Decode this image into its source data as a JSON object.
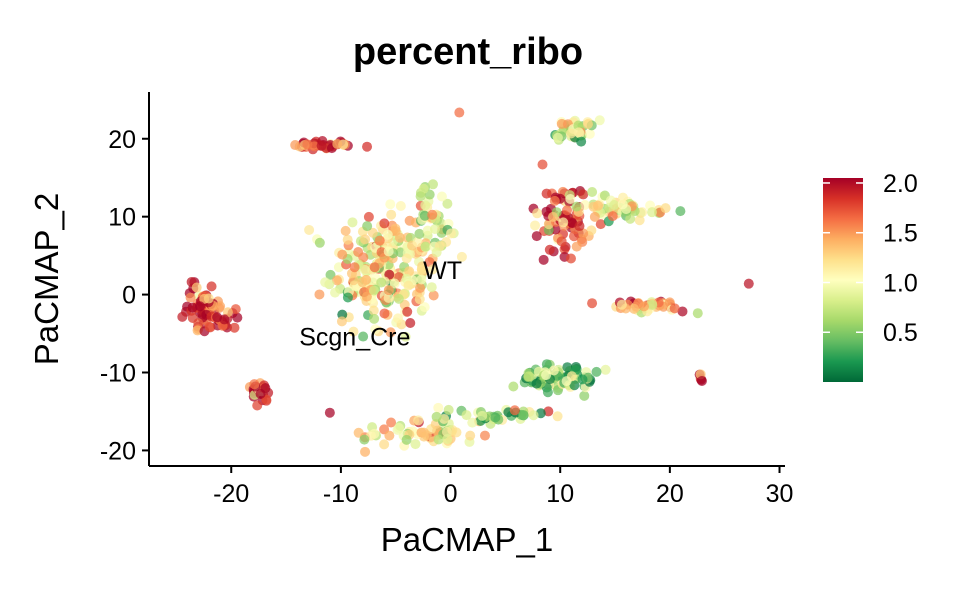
{
  "chart_data": {
    "type": "scatter",
    "title": "percent_ribo",
    "xlabel": "PaCMAP_1",
    "ylabel": "PaCMAP_2",
    "xlim": [
      -27.5,
      30.5
    ],
    "ylim": [
      -22,
      26
    ],
    "x_ticks": [
      -20,
      -10,
      0,
      10,
      20,
      30
    ],
    "y_ticks": [
      -20,
      -10,
      0,
      10,
      20
    ],
    "grid": false,
    "legend": {
      "position": "right",
      "type": "colorbar",
      "range": [
        0.0,
        2.05
      ],
      "ticks": [
        0.5,
        1.0,
        1.5,
        2.0
      ],
      "tick_labels": [
        "0.5",
        "1.0",
        "1.5",
        "2.0"
      ],
      "colors": [
        "#006837",
        "#1a9850",
        "#66bd63",
        "#a6d96a",
        "#d9ef8b",
        "#ffffbf",
        "#fee08b",
        "#fdae61",
        "#f46d43",
        "#d73027",
        "#a50026"
      ]
    },
    "annotations": [
      {
        "text": "WT",
        "x": -2.5,
        "y": 3.0
      },
      {
        "text": "Scgn_Cre",
        "x": -13.8,
        "y": -5.5
      }
    ],
    "clusters": [
      {
        "cx": -11.5,
        "cy": 19.2,
        "sx": 1.4,
        "sy": 0.3,
        "n": 40,
        "value": 1.75
      },
      {
        "cx": -6.0,
        "cy": 3.0,
        "sx": 2.4,
        "sy": 3.6,
        "n": 260,
        "value": 1.1
      },
      {
        "cx": -1.5,
        "cy": 9.0,
        "sx": 1.2,
        "sy": 2.6,
        "n": 40,
        "value": 0.9
      },
      {
        "cx": 0.8,
        "cy": 23.5,
        "sx": 0.05,
        "sy": 0.05,
        "n": 1,
        "value": 1.7
      },
      {
        "cx": 11.2,
        "cy": 21.3,
        "sx": 0.8,
        "sy": 0.8,
        "n": 40,
        "value": 0.8
      },
      {
        "cx": 10.2,
        "cy": 9.5,
        "sx": 1.2,
        "sy": 2.4,
        "n": 80,
        "value": 1.8
      },
      {
        "cx": 15.5,
        "cy": 11.0,
        "sx": 2.5,
        "sy": 0.9,
        "n": 60,
        "value": 0.95
      },
      {
        "cx": 18.0,
        "cy": -1.6,
        "sx": 2.0,
        "sy": 0.5,
        "n": 40,
        "value": 1.4
      },
      {
        "cx": 27.2,
        "cy": 1.4,
        "sx": 0.05,
        "sy": 0.05,
        "n": 1,
        "value": 1.6
      },
      {
        "cx": -22.5,
        "cy": -1.5,
        "sx": 0.8,
        "sy": 1.4,
        "n": 60,
        "value": 1.85
      },
      {
        "cx": -20.5,
        "cy": -3.2,
        "sx": 0.8,
        "sy": 0.6,
        "n": 20,
        "value": 1.8
      },
      {
        "cx": -17.8,
        "cy": -12.3,
        "sx": 0.7,
        "sy": 0.7,
        "n": 25,
        "value": 1.9
      },
      {
        "cx": -11.0,
        "cy": -15.2,
        "sx": 0.03,
        "sy": 0.03,
        "n": 1,
        "value": 2.0
      },
      {
        "cx": 10.0,
        "cy": -10.8,
        "sx": 2.0,
        "sy": 0.9,
        "n": 90,
        "value": 0.6
      },
      {
        "cx": 22.8,
        "cy": -10.3,
        "sx": 0.15,
        "sy": 0.5,
        "n": 5,
        "value": 1.8
      },
      {
        "cx": -2.5,
        "cy": -17.8,
        "sx": 2.6,
        "sy": 1.0,
        "n": 60,
        "value": 1.25
      },
      {
        "cx": 4.0,
        "cy": -15.5,
        "sx": 2.5,
        "sy": 0.6,
        "n": 40,
        "value": 0.75
      }
    ]
  }
}
